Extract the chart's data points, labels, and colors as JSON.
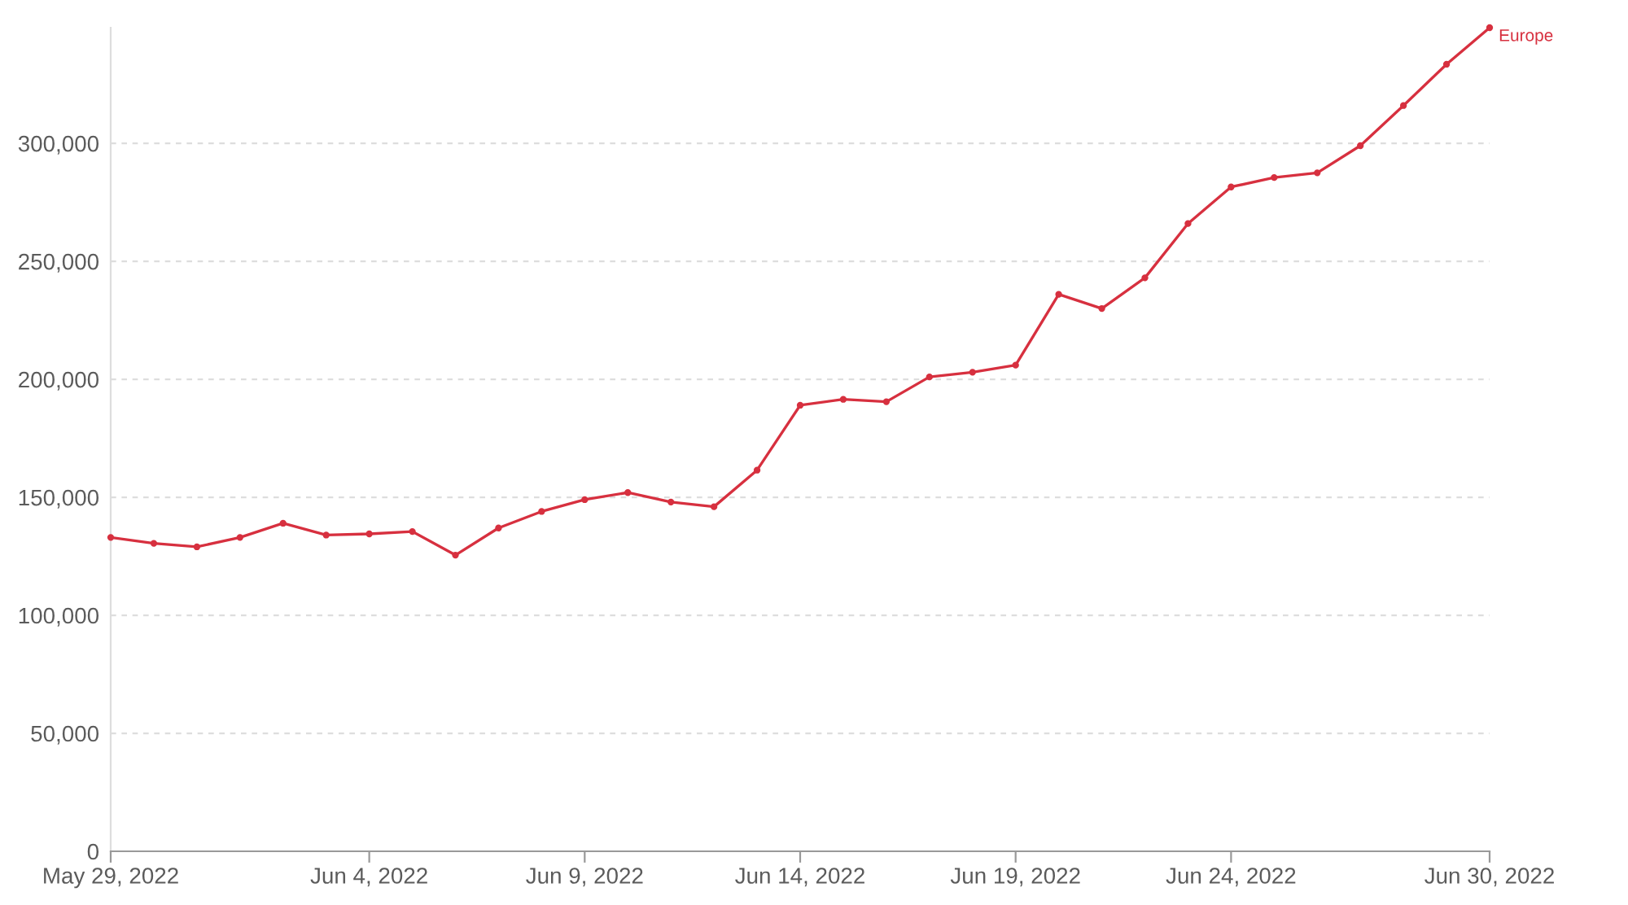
{
  "chart_data": {
    "type": "line",
    "x": [
      "2022-05-29",
      "2022-05-30",
      "2022-05-31",
      "2022-06-01",
      "2022-06-02",
      "2022-06-03",
      "2022-06-04",
      "2022-06-05",
      "2022-06-06",
      "2022-06-07",
      "2022-06-08",
      "2022-06-09",
      "2022-06-10",
      "2022-06-11",
      "2022-06-12",
      "2022-06-13",
      "2022-06-14",
      "2022-06-15",
      "2022-06-16",
      "2022-06-17",
      "2022-06-18",
      "2022-06-19",
      "2022-06-20",
      "2022-06-21",
      "2022-06-22",
      "2022-06-23",
      "2022-06-24",
      "2022-06-25",
      "2022-06-26",
      "2022-06-27",
      "2022-06-28",
      "2022-06-29",
      "2022-06-30"
    ],
    "series": [
      {
        "name": "Europe",
        "color": "#d7303f",
        "values": [
          133000,
          130500,
          129000,
          133000,
          139000,
          134000,
          134500,
          135500,
          125500,
          137000,
          144000,
          149000,
          152000,
          148000,
          146000,
          161500,
          189000,
          191500,
          190500,
          201000,
          203000,
          206000,
          236000,
          230000,
          243000,
          266000,
          281500,
          285500,
          287500,
          299000,
          316000,
          333500,
          349000
        ]
      }
    ],
    "xlim": [
      "2022-05-29",
      "2022-06-30"
    ],
    "xticks": [
      {
        "value": "2022-05-29",
        "label": "May 29, 2022"
      },
      {
        "value": "2022-06-04",
        "label": "Jun 4, 2022"
      },
      {
        "value": "2022-06-09",
        "label": "Jun 9, 2022"
      },
      {
        "value": "2022-06-14",
        "label": "Jun 14, 2022"
      },
      {
        "value": "2022-06-19",
        "label": "Jun 19, 2022"
      },
      {
        "value": "2022-06-24",
        "label": "Jun 24, 2022"
      },
      {
        "value": "2022-06-30",
        "label": "Jun 30, 2022"
      }
    ],
    "ylim": [
      0,
      349000
    ],
    "yticks": [
      0,
      {
        "value": 50000,
        "label": "50,000"
      },
      {
        "value": 100000,
        "label": "100,000"
      },
      {
        "value": 150000,
        "label": "150,000"
      },
      {
        "value": 200000,
        "label": "200,000"
      },
      {
        "value": 250000,
        "label": "250,000"
      },
      {
        "value": 300000,
        "label": "300,000"
      }
    ],
    "grid": "y",
    "marker": "circle",
    "line_style": "solid"
  }
}
